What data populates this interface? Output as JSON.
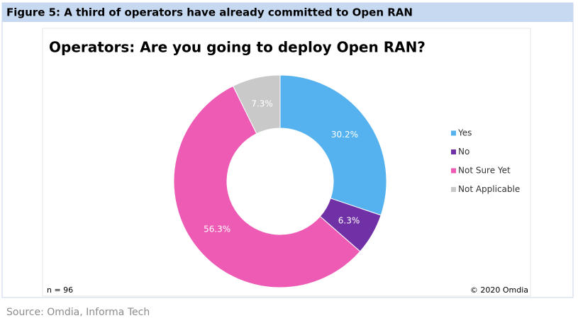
{
  "figure_title": "Figure 5: A third of operators have already committed to Open RAN",
  "chart_data": {
    "type": "donut",
    "title": "Operators: Are you going to deploy Open RAN?",
    "categories": [
      "Yes",
      "No",
      "Not Sure Yet",
      "Not Applicable"
    ],
    "values": [
      30.2,
      6.3,
      56.3,
      7.3
    ],
    "value_labels": [
      "30.2%",
      "6.3%",
      "56.3%",
      "7.3%"
    ],
    "colors": [
      "#55b2ee",
      "#7131a6",
      "#ee5bb5",
      "#c9c9c9"
    ],
    "legend": "right",
    "annotations": [
      "n = 96",
      "© 2020 Omdia"
    ]
  },
  "source": "Source: Omdia, Informa Tech"
}
